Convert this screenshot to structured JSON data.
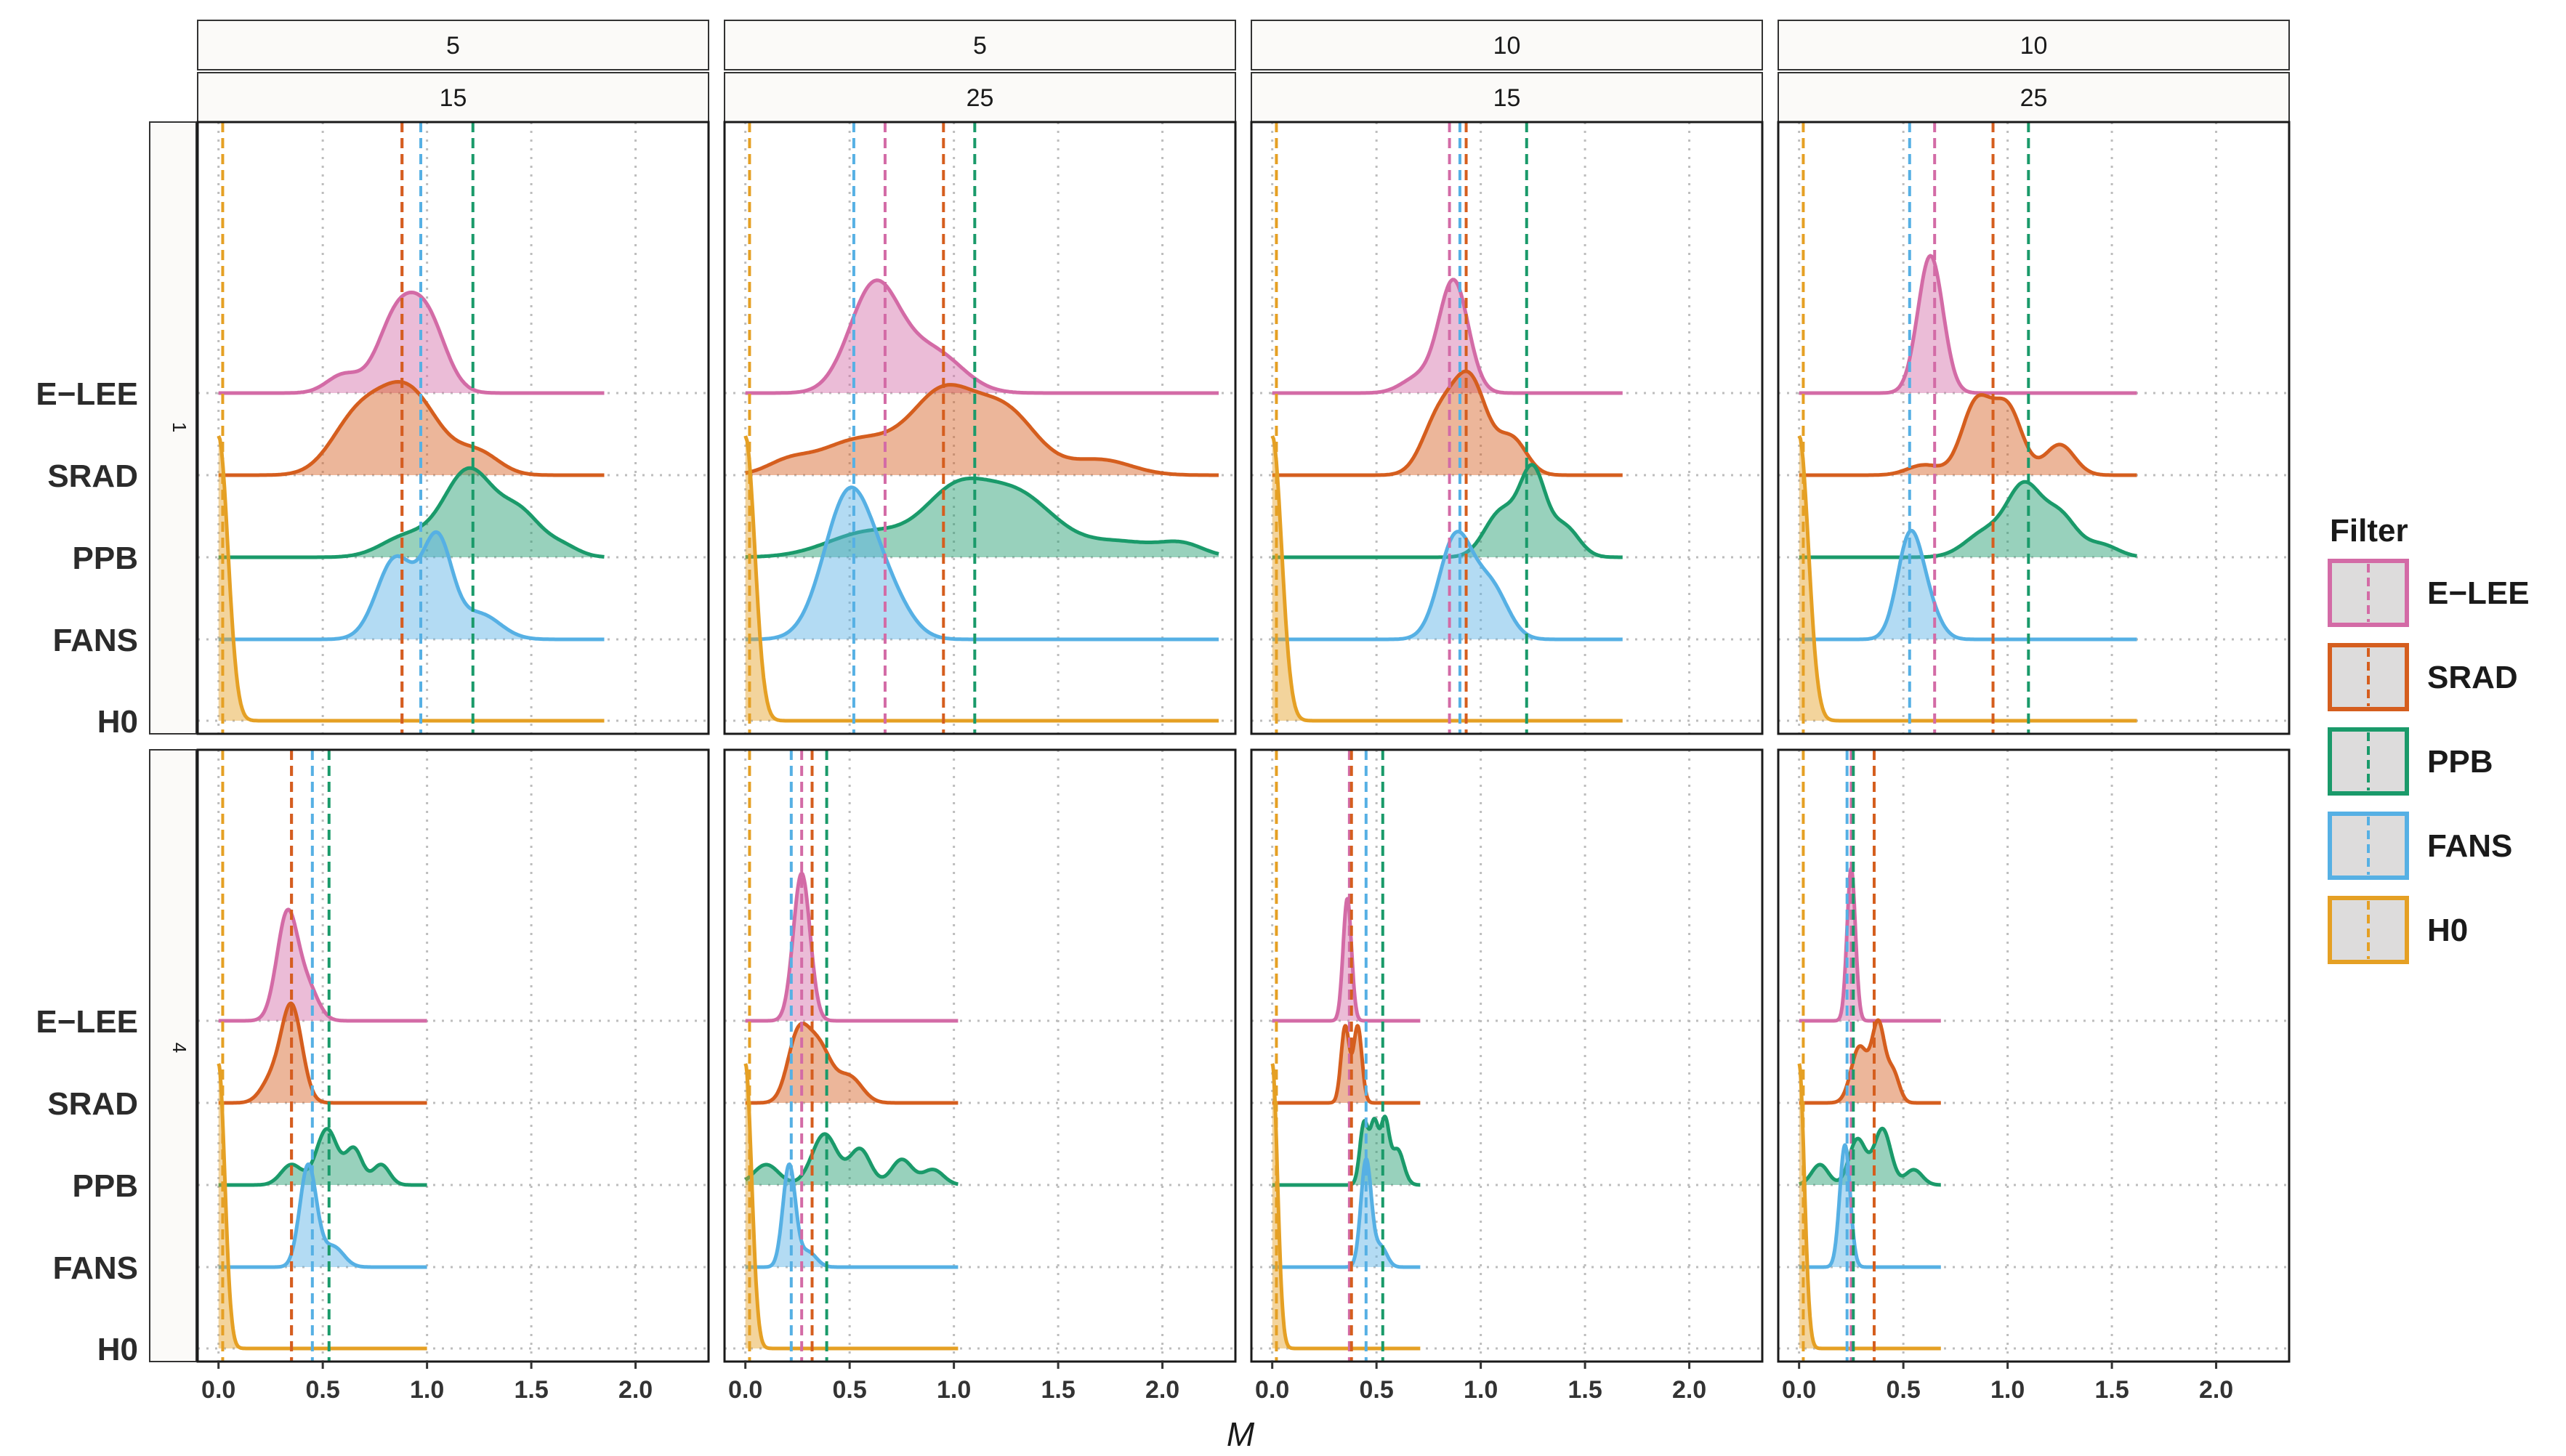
{
  "colors": {
    "E-LEE": "#D36BA6",
    "SRAD": "#D55E1E",
    "PPB": "#1A9A6A",
    "FANS": "#56B0E4",
    "H0": "#E5A024"
  },
  "chart_data": {
    "type": "ridgeline-density",
    "xlabel": "M",
    "x_ticks": [
      "0.0",
      "0.5",
      "1.0",
      "1.5",
      "2.0"
    ],
    "xlim": [
      -0.1,
      2.35
    ],
    "categories": [
      "E−LEE",
      "SRAD",
      "PPB",
      "FANS",
      "H0"
    ],
    "legend": {
      "title": "Filter",
      "entries": [
        "E−LEE",
        "SRAD",
        "PPB",
        "FANS",
        "H0"
      ]
    },
    "column_strips": [
      {
        "top": "5",
        "bottom": "15"
      },
      {
        "top": "5",
        "bottom": "25"
      },
      {
        "top": "10",
        "bottom": "15"
      },
      {
        "top": "10",
        "bottom": "25"
      }
    ],
    "row_strips": [
      "1",
      "4"
    ],
    "panels": [
      [
        {
          "xmax": 1.85,
          "means": {
            "E-LEE": 0.88,
            "SRAD": 0.88,
            "PPB": 1.22,
            "FANS": 0.97,
            "H0": 0.02
          },
          "peaks": {
            "E-LEE": [
              [
                0.6,
                0.18,
                0.08
              ],
              [
                0.85,
                0.7,
                0.09
              ],
              [
                1.0,
                0.7,
                0.09
              ]
            ],
            "SRAD": [
              [
                0.65,
                0.45,
                0.12
              ],
              [
                0.9,
                0.85,
                0.15
              ],
              [
                1.25,
                0.2,
                0.1
              ]
            ],
            "PPB": [
              [
                0.9,
                0.2,
                0.12
              ],
              [
                1.2,
                0.85,
                0.12
              ],
              [
                1.45,
                0.4,
                0.1
              ],
              [
                1.65,
                0.1,
                0.08
              ]
            ],
            "FANS": [
              [
                0.85,
                0.8,
                0.09
              ],
              [
                1.05,
                0.95,
                0.07
              ],
              [
                1.25,
                0.25,
                0.1
              ]
            ],
            "H0": [
              [
                0.0,
                2.8,
                0.045
              ]
            ]
          }
        },
        {
          "xmax": 2.27,
          "means": {
            "E-LEE": 0.67,
            "SRAD": 0.95,
            "PPB": 1.1,
            "FANS": 0.52,
            "H0": 0.02
          },
          "peaks": {
            "E-LEE": [
              [
                0.62,
                1.05,
                0.12
              ],
              [
                0.9,
                0.4,
                0.14
              ]
            ],
            "SRAD": [
              [
                0.2,
                0.1,
                0.1
              ],
              [
                0.55,
                0.35,
                0.2
              ],
              [
                0.95,
                0.75,
                0.15
              ],
              [
                1.25,
                0.6,
                0.15
              ],
              [
                1.7,
                0.15,
                0.15
              ]
            ],
            "PPB": [
              [
                0.6,
                0.25,
                0.2
              ],
              [
                1.0,
                0.55,
                0.15
              ],
              [
                1.3,
                0.6,
                0.18
              ],
              [
                1.8,
                0.15,
                0.2
              ],
              [
                2.1,
                0.1,
                0.1
              ]
            ],
            "FANS": [
              [
                0.5,
                1.45,
                0.12
              ],
              [
                0.7,
                0.3,
                0.1
              ]
            ],
            "H0": [
              [
                0.0,
                2.8,
                0.045
              ]
            ]
          }
        },
        {
          "xmax": 1.68,
          "means": {
            "E-LEE": 0.85,
            "SRAD": 0.93,
            "PPB": 1.22,
            "FANS": 0.9,
            "H0": 0.02
          },
          "peaks": {
            "E-LEE": [
              [
                0.87,
                1.1,
                0.07
              ],
              [
                0.7,
                0.15,
                0.08
              ]
            ],
            "SRAD": [
              [
                0.8,
                0.55,
                0.08
              ],
              [
                0.95,
                0.9,
                0.08
              ],
              [
                1.15,
                0.35,
                0.07
              ]
            ],
            "PPB": [
              [
                1.1,
                0.45,
                0.08
              ],
              [
                1.25,
                0.8,
                0.06
              ],
              [
                1.4,
                0.3,
                0.07
              ]
            ],
            "FANS": [
              [
                0.88,
                1.0,
                0.08
              ],
              [
                1.05,
                0.5,
                0.08
              ]
            ],
            "H0": [
              [
                0.0,
                2.8,
                0.045
              ]
            ]
          }
        },
        {
          "xmax": 1.62,
          "means": {
            "E-LEE": 0.65,
            "SRAD": 0.93,
            "PPB": 1.1,
            "FANS": 0.53,
            "H0": 0.02
          },
          "peaks": {
            "E-LEE": [
              [
                0.63,
                1.35,
                0.06
              ]
            ],
            "SRAD": [
              [
                0.85,
                0.7,
                0.07
              ],
              [
                1.0,
                0.65,
                0.07
              ],
              [
                1.25,
                0.3,
                0.07
              ],
              [
                0.6,
                0.1,
                0.08
              ]
            ],
            "PPB": [
              [
                0.9,
                0.25,
                0.1
              ],
              [
                1.08,
                0.65,
                0.08
              ],
              [
                1.25,
                0.4,
                0.08
              ],
              [
                1.45,
                0.12,
                0.08
              ]
            ],
            "FANS": [
              [
                0.53,
                0.98,
                0.06
              ],
              [
                0.62,
                0.25,
                0.06
              ]
            ],
            "H0": [
              [
                0.0,
                2.8,
                0.045
              ]
            ]
          }
        }
      ],
      [
        {
          "xmax": 1.0,
          "means": {
            "E-LEE": 0.35,
            "SRAD": 0.35,
            "PPB": 0.53,
            "FANS": 0.45,
            "H0": 0.02
          },
          "peaks": {
            "E-LEE": [
              [
                0.33,
                1.05,
                0.05
              ],
              [
                0.43,
                0.3,
                0.05
              ]
            ],
            "SRAD": [
              [
                0.35,
                0.95,
                0.05
              ],
              [
                0.25,
                0.2,
                0.05
              ]
            ],
            "PPB": [
              [
                0.35,
                0.2,
                0.05
              ],
              [
                0.52,
                0.55,
                0.05
              ],
              [
                0.65,
                0.35,
                0.04
              ],
              [
                0.78,
                0.2,
                0.04
              ]
            ],
            "FANS": [
              [
                0.43,
                1.0,
                0.04
              ],
              [
                0.55,
                0.2,
                0.05
              ]
            ],
            "H0": [
              [
                0.0,
                2.8,
                0.03
              ]
            ]
          }
        },
        {
          "xmax": 1.02,
          "means": {
            "E-LEE": 0.27,
            "SRAD": 0.32,
            "PPB": 0.39,
            "FANS": 0.22,
            "H0": 0.02
          },
          "peaks": {
            "E-LEE": [
              [
                0.27,
                1.45,
                0.04
              ]
            ],
            "SRAD": [
              [
                0.25,
                0.6,
                0.05
              ],
              [
                0.35,
                0.55,
                0.06
              ],
              [
                0.5,
                0.25,
                0.06
              ]
            ],
            "PPB": [
              [
                0.1,
                0.2,
                0.06
              ],
              [
                0.38,
                0.5,
                0.06
              ],
              [
                0.55,
                0.35,
                0.05
              ],
              [
                0.75,
                0.25,
                0.05
              ],
              [
                0.9,
                0.15,
                0.05
              ]
            ],
            "FANS": [
              [
                0.21,
                1.0,
                0.03
              ],
              [
                0.3,
                0.15,
                0.04
              ]
            ],
            "H0": [
              [
                0.0,
                2.8,
                0.03
              ]
            ]
          }
        },
        {
          "xmax": 0.71,
          "means": {
            "E-LEE": 0.37,
            "SRAD": 0.38,
            "PPB": 0.53,
            "FANS": 0.45,
            "H0": 0.02
          },
          "peaks": {
            "E-LEE": [
              [
                0.36,
                1.2,
                0.02
              ]
            ],
            "SRAD": [
              [
                0.35,
                0.75,
                0.02
              ],
              [
                0.41,
                0.75,
                0.02
              ]
            ],
            "PPB": [
              [
                0.44,
                0.6,
                0.02
              ],
              [
                0.49,
                0.6,
                0.02
              ],
              [
                0.54,
                0.6,
                0.02
              ],
              [
                0.6,
                0.35,
                0.03
              ]
            ],
            "FANS": [
              [
                0.45,
                1.05,
                0.025
              ],
              [
                0.52,
                0.2,
                0.03
              ]
            ],
            "H0": [
              [
                0.0,
                2.8,
                0.025
              ]
            ]
          }
        },
        {
          "xmax": 0.68,
          "means": {
            "E-LEE": 0.25,
            "SRAD": 0.36,
            "PPB": 0.26,
            "FANS": 0.23,
            "H0": 0.02
          },
          "peaks": {
            "E-LEE": [
              [
                0.25,
                1.5,
                0.02
              ]
            ],
            "SRAD": [
              [
                0.29,
                0.55,
                0.04
              ],
              [
                0.38,
                0.75,
                0.03
              ],
              [
                0.45,
                0.3,
                0.03
              ]
            ],
            "PPB": [
              [
                0.1,
                0.2,
                0.04
              ],
              [
                0.28,
                0.45,
                0.04
              ],
              [
                0.4,
                0.55,
                0.04
              ],
              [
                0.55,
                0.15,
                0.04
              ]
            ],
            "FANS": [
              [
                0.22,
                1.2,
                0.025
              ]
            ],
            "H0": [
              [
                0.0,
                2.8,
                0.025
              ]
            ]
          }
        }
      ]
    ]
  }
}
